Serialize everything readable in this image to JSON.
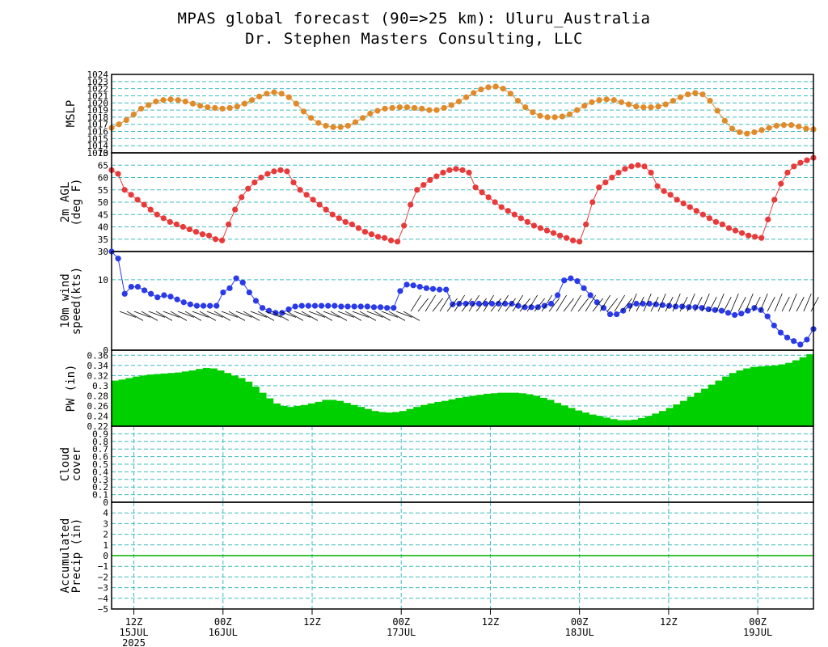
{
  "header": {
    "title": "MPAS global forecast (90=>25 km): Uluru_Australia",
    "subtitle": "Dr. Stephen Masters Consulting, LLC"
  },
  "time_axis": {
    "ticks": [
      {
        "hour": 3,
        "top": "12Z",
        "mid": "15JUL",
        "bottom": "2025"
      },
      {
        "hour": 15,
        "top": "00Z",
        "mid": "16JUL",
        "bottom": ""
      },
      {
        "hour": 27,
        "top": "12Z",
        "mid": "",
        "bottom": ""
      },
      {
        "hour": 39,
        "top": "00Z",
        "mid": "17JUL",
        "bottom": ""
      },
      {
        "hour": 51,
        "top": "12Z",
        "mid": "",
        "bottom": ""
      },
      {
        "hour": 63,
        "top": "00Z",
        "mid": "18JUL",
        "bottom": ""
      },
      {
        "hour": 75,
        "top": "12Z",
        "mid": "",
        "bottom": ""
      },
      {
        "hour": 87,
        "top": "00Z",
        "mid": "19JUL",
        "bottom": ""
      }
    ],
    "range_hours": [
      0,
      94.5
    ]
  },
  "chart_data": [
    {
      "type": "line",
      "ylabel": "MSLP",
      "ylim": [
        1013,
        1024
      ],
      "ticks": [
        1013,
        1014,
        1015,
        1016,
        1017,
        1018,
        1019,
        1020,
        1021,
        1022,
        1023,
        1024
      ],
      "grid": true,
      "color": "#e08a2a",
      "x_step_hours": 1,
      "values": [
        1016.5,
        1017,
        1017.6,
        1018.4,
        1019.2,
        1019.7,
        1020.2,
        1020.4,
        1020.5,
        1020.4,
        1020.2,
        1019.9,
        1019.6,
        1019.4,
        1019.3,
        1019.2,
        1019.3,
        1019.5,
        1019.9,
        1020.4,
        1020.9,
        1021.3,
        1021.5,
        1021.3,
        1020.8,
        1019.9,
        1018.8,
        1017.9,
        1017.2,
        1016.8,
        1016.6,
        1016.6,
        1016.8,
        1017.3,
        1017.9,
        1018.5,
        1018.9,
        1019.2,
        1019.3,
        1019.4,
        1019.4,
        1019.3,
        1019.2,
        1019.0,
        1019.0,
        1019.3,
        1019.7,
        1020.2,
        1020.8,
        1021.4,
        1021.9,
        1022.2,
        1022.3,
        1022.0,
        1021.3,
        1020.3,
        1019.4,
        1018.7,
        1018.2,
        1018.0,
        1018.0,
        1018.1,
        1018.4,
        1019.0,
        1019.6,
        1020.1,
        1020.4,
        1020.5,
        1020.4,
        1020.1,
        1019.8,
        1019.5,
        1019.4,
        1019.4,
        1019.5,
        1019.8,
        1020.3,
        1020.8,
        1021.2,
        1021.4,
        1021.2,
        1020.3,
        1018.9,
        1017.5,
        1016.4,
        1015.9,
        1015.7,
        1015.9,
        1016.2,
        1016.5,
        1016.8,
        1016.9,
        1016.9,
        1016.7,
        1016.4,
        1016.3
      ]
    },
    {
      "type": "line",
      "ylabel": "2m AGL (deg F)",
      "ylim": [
        30,
        70
      ],
      "ticks": [
        30,
        35,
        40,
        45,
        50,
        55,
        60,
        65,
        70
      ],
      "grid": true,
      "color": "#e83a3a",
      "values": [
        63,
        61.5,
        55,
        53,
        51,
        49,
        47,
        45,
        43.5,
        42,
        41,
        40,
        39,
        38,
        37,
        36.5,
        35,
        34.5,
        41,
        47,
        52,
        55.5,
        58,
        60,
        61.5,
        62.5,
        63,
        62.5,
        58,
        55,
        53,
        51,
        49,
        47,
        45,
        43.5,
        42,
        41,
        39.5,
        38,
        37,
        36,
        35.5,
        34.5,
        34,
        40.5,
        49,
        55,
        57,
        59,
        60.5,
        62,
        63,
        63.5,
        63,
        62,
        56,
        54,
        52,
        50,
        48,
        46.5,
        45,
        43.5,
        42,
        40.5,
        39.5,
        38.5,
        37.5,
        36.5,
        35.5,
        34.5,
        34,
        41,
        50,
        56,
        58,
        60,
        62,
        63.5,
        64.5,
        65,
        64.5,
        62,
        56.5,
        54.5,
        53,
        51,
        49.5,
        48,
        46.5,
        45,
        43.5,
        42,
        41,
        39.5,
        38.5,
        37.5,
        36.5,
        36,
        35.5,
        43,
        51,
        57.5,
        62,
        64.5,
        66,
        67,
        68
      ]
    },
    {
      "type": "line",
      "ylabel": "10m wind speed(kts)",
      "ylim": [
        0,
        14
      ],
      "ticks": [
        0,
        10
      ],
      "grid": true,
      "color": "#2a3ae8",
      "values": [
        14,
        13,
        8,
        9,
        9,
        8.5,
        8,
        7.5,
        7.8,
        7.6,
        7.2,
        6.8,
        6.5,
        6.3,
        6.3,
        6.3,
        6.3,
        8.2,
        8.8,
        10.2,
        9.6,
        8.2,
        7,
        6,
        5.6,
        5.3,
        5.3,
        5.8,
        6.2,
        6.3,
        6.3,
        6.3,
        6.3,
        6.3,
        6.3,
        6.2,
        6.2,
        6.2,
        6.2,
        6.2,
        6.1,
        6.1,
        6,
        6,
        8.4,
        9.3,
        9.2,
        9,
        8.8,
        8.7,
        8.6,
        8.6,
        6.5,
        6.6,
        6.6,
        6.6,
        6.6,
        6.6,
        6.6,
        6.6,
        6.6,
        6.6,
        6.3,
        6.1,
        6.1,
        6.1,
        6.3,
        6.6,
        7.8,
        9.9,
        10.2,
        9.8,
        8.8,
        7.8,
        6.8,
        6,
        5.1,
        5.1,
        5.6,
        6.3,
        6.6,
        6.6,
        6.6,
        6.5,
        6.4,
        6.3,
        6.2,
        6.2,
        6.1,
        6.1,
        6,
        5.8,
        5.7,
        5.6,
        5.3,
        5,
        5.2,
        5.6,
        6,
        5.7,
        4.8,
        3.5,
        2.5,
        1.8,
        1.3,
        0.8,
        1.5,
        3
      ]
    },
    {
      "type": "area",
      "ylabel": "PW (in)",
      "ylim": [
        0.22,
        0.37
      ],
      "ticks": [
        0.22,
        0.24,
        0.26,
        0.28,
        0.3,
        0.32,
        0.34,
        0.36
      ],
      "grid": true,
      "color": "#00d000",
      "values": [
        0.31,
        0.312,
        0.315,
        0.318,
        0.32,
        0.322,
        0.323,
        0.324,
        0.325,
        0.326,
        0.328,
        0.33,
        0.333,
        0.335,
        0.334,
        0.33,
        0.325,
        0.32,
        0.315,
        0.308,
        0.298,
        0.286,
        0.275,
        0.265,
        0.26,
        0.258,
        0.26,
        0.262,
        0.265,
        0.268,
        0.272,
        0.272,
        0.27,
        0.266,
        0.262,
        0.258,
        0.254,
        0.25,
        0.248,
        0.247,
        0.248,
        0.25,
        0.254,
        0.258,
        0.262,
        0.265,
        0.268,
        0.27,
        0.273,
        0.276,
        0.278,
        0.28,
        0.282,
        0.284,
        0.285,
        0.286,
        0.286,
        0.286,
        0.285,
        0.283,
        0.28,
        0.276,
        0.272,
        0.266,
        0.261,
        0.256,
        0.251,
        0.247,
        0.243,
        0.24,
        0.237,
        0.234,
        0.232,
        0.232,
        0.233,
        0.236,
        0.24,
        0.245,
        0.25,
        0.256,
        0.263,
        0.27,
        0.278,
        0.286,
        0.294,
        0.302,
        0.31,
        0.318,
        0.325,
        0.33,
        0.334,
        0.337,
        0.338,
        0.339,
        0.34,
        0.342,
        0.345,
        0.35,
        0.356,
        0.362
      ]
    },
    {
      "type": "line",
      "ylabel": "Cloud cover",
      "ylim": [
        0,
        1
      ],
      "ticks": [
        0,
        0.1,
        0.2,
        0.3,
        0.4,
        0.5,
        0.6,
        0.7,
        0.8,
        0.9,
        1
      ],
      "tick_labels": [
        "0",
        "0.1",
        "0.2",
        "0.3",
        "0.4",
        "0.5",
        "0.6",
        "0.7",
        "0.8",
        "0.9",
        ""
      ],
      "grid": true,
      "values": []
    },
    {
      "type": "line",
      "ylabel": "Accumulated Precip (in)",
      "ylim": [
        -5,
        5
      ],
      "ticks": [
        -5,
        -4,
        -3,
        -2,
        -1,
        0,
        1,
        2,
        3,
        4,
        5
      ],
      "tick_labels": [
        "−5",
        "−4",
        "−3",
        "−2",
        "−1",
        "0",
        "1",
        "2",
        "3",
        "4",
        ""
      ],
      "grid": true,
      "color": "#00b000",
      "values": [
        0,
        0
      ]
    }
  ]
}
